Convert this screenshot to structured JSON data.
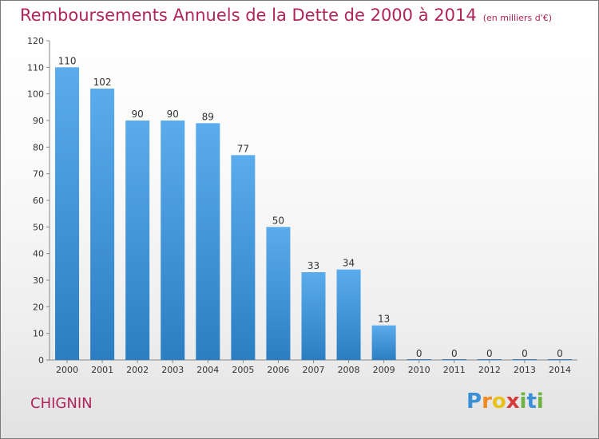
{
  "title": "Remboursements Annuels de la Dette de 2000 à 2014",
  "unit_note": "(en milliers d'€)",
  "commune": "CHIGNIN",
  "logo": {
    "letters": [
      "P",
      "r",
      "o",
      "x",
      "i",
      "t",
      "i"
    ],
    "colors": [
      "#3a8fd6",
      "#f08a1c",
      "#e8c21a",
      "#d63a3a",
      "#6cb33f",
      "#3a8fd6",
      "#6cb33f"
    ]
  },
  "colors": {
    "bar_light": "#5aacec",
    "bar_dark": "#2b7ec2",
    "title": "#b0245b"
  },
  "chart_data": {
    "type": "bar",
    "categories": [
      "2000",
      "2001",
      "2002",
      "2003",
      "2004",
      "2005",
      "2006",
      "2007",
      "2008",
      "2009",
      "2010",
      "2011",
      "2012",
      "2013",
      "2014"
    ],
    "values": [
      110,
      102,
      90,
      90,
      89,
      77,
      50,
      33,
      34,
      13,
      0,
      0,
      0,
      0,
      0
    ],
    "title": "Remboursements Annuels de la Dette de 2000 à 2014",
    "subtitle": "(en milliers d'€)",
    "xlabel": "",
    "ylabel": "",
    "ylim": [
      0,
      120
    ],
    "yticks": [
      0,
      10,
      20,
      30,
      40,
      50,
      60,
      70,
      80,
      90,
      100,
      110,
      120
    ],
    "grid": false,
    "data_labels": true
  }
}
